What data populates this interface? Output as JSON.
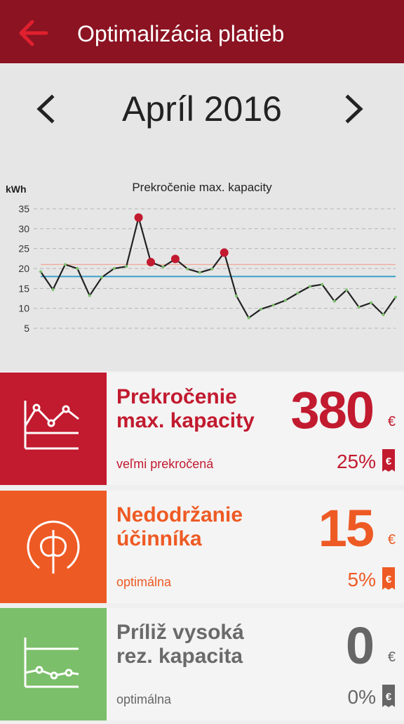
{
  "header": {
    "title": "Optimalizácia platieb",
    "back_icon": "arrow-left-icon",
    "accent": "#e0202e",
    "bg": "#8b1322"
  },
  "month": {
    "label": "Apríl 2016",
    "prev_icon": "chevron-left-icon",
    "next_icon": "chevron-right-icon"
  },
  "chart_data": {
    "type": "line",
    "title": "Prekročenie max. kapacity",
    "ylabel": "kWh",
    "ylim": [
      5,
      35
    ],
    "yticks": [
      "35",
      "30",
      "25",
      "20",
      "15",
      "10",
      "5"
    ],
    "x": [
      1,
      2,
      3,
      4,
      5,
      6,
      7,
      8,
      9,
      10,
      11,
      12,
      13,
      14,
      15,
      16,
      17,
      18,
      19,
      20,
      21,
      22,
      23,
      24,
      25,
      26,
      27,
      28,
      29,
      30
    ],
    "series": [
      {
        "values": [
          19.2,
          14.7,
          21.0,
          20.0,
          13.2,
          17.8,
          20.0,
          20.5,
          32.8,
          21.6,
          20.4,
          22.4,
          19.9,
          19.0,
          19.9,
          24.0,
          13.1,
          7.6,
          9.8,
          10.8,
          12.0,
          13.8,
          15.5,
          16.0,
          11.8,
          14.6,
          10.3,
          11.4,
          8.4,
          12.8
        ]
      }
    ],
    "reference_lines": [
      {
        "value": 21.0,
        "color": "#f2a08a"
      },
      {
        "value": 18.0,
        "color": "#3aa0c8"
      }
    ],
    "highlighted_points": [
      9,
      10,
      12,
      16
    ],
    "grid": "dashed"
  },
  "cards": [
    {
      "title": "Prekročenie max. kapacity",
      "value": "380",
      "currency": "€",
      "status": "veľmi prekročená",
      "percent": "25%",
      "color": "#c21a2f",
      "icon": "line-chart-icon",
      "bill_icon": "euro-bill-icon"
    },
    {
      "title": "Nedodržanie účinníka",
      "value": "15",
      "currency": "€",
      "status": "optimálna",
      "percent": "5%",
      "color": "#ee5a24",
      "icon": "phi-icon",
      "bill_icon": "euro-bill-icon"
    },
    {
      "title": "Príliž vysoká rez. kapacita",
      "value": "0",
      "currency": "€",
      "status": "optimálna",
      "percent": "0%",
      "color": "#7bbf6a",
      "icon": "flat-chart-icon",
      "bill_icon": "euro-bill-icon"
    }
  ]
}
